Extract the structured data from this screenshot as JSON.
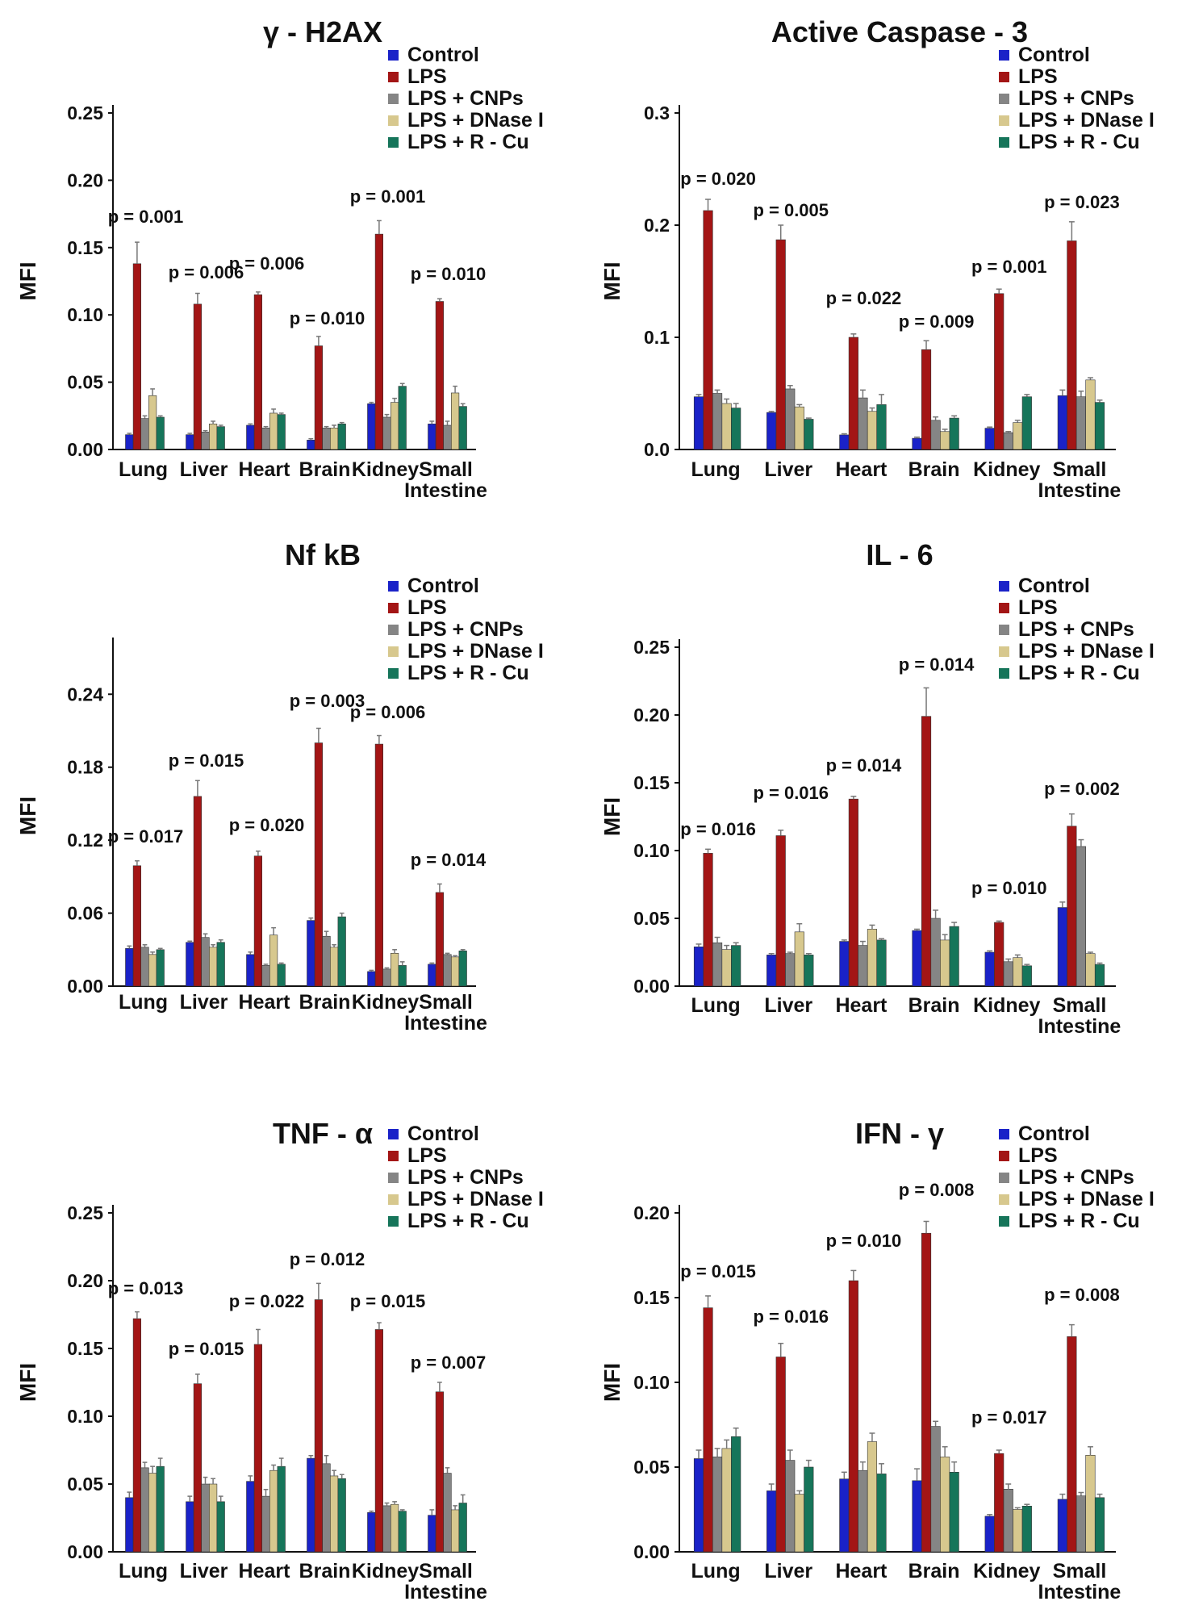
{
  "series_colors": [
    "#1a22c8",
    "#a31515",
    "#858585",
    "#d7c88e",
    "#16755a"
  ],
  "chart_data": [
    {
      "type": "bar",
      "title": "γ - H2AX",
      "ylabel": "MFI",
      "ylim": [
        0,
        0.25
      ],
      "yticks": [
        "0.00",
        "0.05",
        "0.10",
        "0.15",
        "0.20",
        "0.25"
      ],
      "categories": [
        "Lung",
        "Liver",
        "Heart",
        "Brain",
        "Kidney",
        "Small|Intestine"
      ],
      "legend": [
        "Control",
        "LPS",
        "LPS + CNPs",
        "LPS + DNase I",
        "LPS + R - Cu"
      ],
      "series": [
        {
          "name": "Control",
          "values": [
            0.011,
            0.011,
            0.018,
            0.007,
            0.034,
            0.019
          ],
          "errors": [
            0.001,
            0.001,
            0.001,
            0.001,
            0.001,
            0.002
          ]
        },
        {
          "name": "LPS",
          "values": [
            0.138,
            0.108,
            0.115,
            0.077,
            0.16,
            0.11
          ],
          "errors": [
            0.016,
            0.008,
            0.002,
            0.007,
            0.01,
            0.002
          ]
        },
        {
          "name": "LPS + CNPs",
          "values": [
            0.023,
            0.013,
            0.016,
            0.016,
            0.024,
            0.018
          ],
          "errors": [
            0.002,
            0.001,
            0.001,
            0.001,
            0.002,
            0.003
          ]
        },
        {
          "name": "LPS + DNase I",
          "values": [
            0.04,
            0.019,
            0.027,
            0.016,
            0.035,
            0.042
          ],
          "errors": [
            0.005,
            0.002,
            0.003,
            0.002,
            0.003,
            0.005
          ]
        },
        {
          "name": "LPS + R - Cu",
          "values": [
            0.024,
            0.017,
            0.026,
            0.019,
            0.047,
            0.032
          ],
          "errors": [
            0.001,
            0.001,
            0.001,
            0.001,
            0.002,
            0.002
          ]
        }
      ],
      "pvalues": [
        "p = 0.001",
        "p = 0.006",
        "p = 0.006",
        "p = 0.010",
        "p = 0.001",
        "p = 0.010"
      ]
    },
    {
      "type": "bar",
      "title": "Active Caspase - 3",
      "ylabel": "MFI",
      "ylim": [
        0,
        0.3
      ],
      "yticks": [
        "0.0",
        "0.1",
        "0.2",
        "0.3"
      ],
      "categories": [
        "Lung",
        "Liver",
        "Heart",
        "Brain",
        "Kidney",
        "Small|Intestine"
      ],
      "legend": [
        "Control",
        "LPS",
        "LPS + CNPs",
        "LPS + DNase I",
        "LPS + R - Cu"
      ],
      "series": [
        {
          "name": "Control",
          "values": [
            0.047,
            0.033,
            0.013,
            0.01,
            0.019,
            0.048
          ],
          "errors": [
            0.002,
            0.001,
            0.001,
            0.001,
            0.001,
            0.005
          ]
        },
        {
          "name": "LPS",
          "values": [
            0.213,
            0.187,
            0.1,
            0.089,
            0.139,
            0.186
          ],
          "errors": [
            0.01,
            0.013,
            0.003,
            0.008,
            0.004,
            0.017
          ]
        },
        {
          "name": "LPS + CNPs",
          "values": [
            0.05,
            0.054,
            0.046,
            0.026,
            0.015,
            0.047
          ],
          "errors": [
            0.003,
            0.003,
            0.007,
            0.003,
            0.001,
            0.005
          ]
        },
        {
          "name": "LPS + DNase I",
          "values": [
            0.041,
            0.038,
            0.034,
            0.016,
            0.024,
            0.062
          ],
          "errors": [
            0.004,
            0.002,
            0.003,
            0.002,
            0.002,
            0.002
          ]
        },
        {
          "name": "LPS + R - Cu",
          "values": [
            0.037,
            0.027,
            0.04,
            0.028,
            0.047,
            0.042
          ],
          "errors": [
            0.004,
            0.001,
            0.009,
            0.002,
            0.002,
            0.002
          ]
        }
      ],
      "pvalues": [
        "p = 0.020",
        "p = 0.005",
        "p = 0.022",
        "p = 0.009",
        "p = 0.001",
        "p = 0.023"
      ]
    },
    {
      "type": "bar",
      "title": "Nf kB",
      "ylabel": "MFI",
      "ylim": [
        0,
        0.28
      ],
      "yticks": [
        "0.00",
        "0.06",
        "0.12",
        "0.18",
        "0.24"
      ],
      "tickvalues": [
        0,
        0.06,
        0.12,
        0.18,
        0.24
      ],
      "categories": [
        "Lung",
        "Liver",
        "Heart",
        "Brain",
        "Kidney",
        "Small|Intestine"
      ],
      "legend": [
        "Control",
        "LPS",
        "LPS + CNPs",
        "LPS + DNase I",
        "LPS + R - Cu"
      ],
      "series": [
        {
          "name": "Control",
          "values": [
            0.031,
            0.036,
            0.026,
            0.054,
            0.012,
            0.018
          ],
          "errors": [
            0.002,
            0.001,
            0.002,
            0.002,
            0.001,
            0.001
          ]
        },
        {
          "name": "LPS",
          "values": [
            0.099,
            0.156,
            0.107,
            0.2,
            0.199,
            0.077
          ],
          "errors": [
            0.004,
            0.013,
            0.004,
            0.012,
            0.007,
            0.007
          ]
        },
        {
          "name": "LPS + CNPs",
          "values": [
            0.032,
            0.04,
            0.017,
            0.041,
            0.014,
            0.026
          ],
          "errors": [
            0.002,
            0.003,
            0.001,
            0.004,
            0.001,
            0.001
          ]
        },
        {
          "name": "LPS + DNase I",
          "values": [
            0.026,
            0.032,
            0.042,
            0.032,
            0.027,
            0.024
          ],
          "errors": [
            0.002,
            0.002,
            0.006,
            0.002,
            0.003,
            0.001
          ]
        },
        {
          "name": "LPS + R - Cu",
          "values": [
            0.03,
            0.036,
            0.018,
            0.057,
            0.017,
            0.029
          ],
          "errors": [
            0.001,
            0.002,
            0.001,
            0.003,
            0.003,
            0.001
          ]
        }
      ],
      "pvalues": [
        "p = 0.017",
        "p  = 0.015",
        "p = 0.020",
        "p = 0.003",
        "p = 0.006",
        "p = 0.014"
      ]
    },
    {
      "type": "bar",
      "title": "IL - 6",
      "ylabel": "MFI",
      "ylim": [
        0,
        0.25
      ],
      "yticks": [
        "0.00",
        "0.05",
        "0.10",
        "0.15",
        "0.20",
        "0.25"
      ],
      "categories": [
        "Lung",
        "Liver",
        "Heart",
        "Brain",
        "Kidney",
        "Small|Intestine"
      ],
      "legend": [
        "Control",
        "LPS",
        "LPS + CNPs",
        "LPS + DNase I",
        "LPS + R - Cu"
      ],
      "series": [
        {
          "name": "Control",
          "values": [
            0.029,
            0.023,
            0.033,
            0.041,
            0.025,
            0.058
          ],
          "errors": [
            0.002,
            0.001,
            0.001,
            0.001,
            0.001,
            0.004
          ]
        },
        {
          "name": "LPS",
          "values": [
            0.098,
            0.111,
            0.138,
            0.199,
            0.047,
            0.118
          ],
          "errors": [
            0.003,
            0.004,
            0.002,
            0.021,
            0.001,
            0.009
          ]
        },
        {
          "name": "LPS + CNPs",
          "values": [
            0.032,
            0.024,
            0.03,
            0.05,
            0.018,
            0.103
          ],
          "errors": [
            0.004,
            0.001,
            0.003,
            0.006,
            0.002,
            0.005
          ]
        },
        {
          "name": "LPS + DNase I",
          "values": [
            0.027,
            0.04,
            0.042,
            0.034,
            0.021,
            0.024
          ],
          "errors": [
            0.003,
            0.006,
            0.003,
            0.004,
            0.002,
            0.001
          ]
        },
        {
          "name": "LPS + R - Cu",
          "values": [
            0.03,
            0.023,
            0.034,
            0.044,
            0.015,
            0.016
          ],
          "errors": [
            0.002,
            0.001,
            0.001,
            0.003,
            0.001,
            0.001
          ]
        }
      ],
      "pvalues": [
        "p = 0.016",
        "p = 0.016",
        "p = 0.014",
        "p = 0.014",
        "p = 0.010",
        "p = 0.002"
      ]
    },
    {
      "type": "bar",
      "title": "TNF - α",
      "ylabel": "MFI",
      "ylim": [
        0,
        0.25
      ],
      "yticks": [
        "0.00",
        "0.05",
        "0.10",
        "0.15",
        "0.20",
        "0.25"
      ],
      "categories": [
        "Lung",
        "Liver",
        "Heart",
        "Brain",
        "Kidney",
        "Small|Intestine"
      ],
      "legend": [
        "Control",
        "LPS",
        "LPS + CNPs",
        "LPS + DNase I",
        "LPS + R - Cu"
      ],
      "series": [
        {
          "name": "Control",
          "values": [
            0.04,
            0.037,
            0.052,
            0.069,
            0.029,
            0.027
          ],
          "errors": [
            0.004,
            0.004,
            0.004,
            0.002,
            0.001,
            0.004
          ]
        },
        {
          "name": "LPS",
          "values": [
            0.172,
            0.124,
            0.153,
            0.186,
            0.164,
            0.118
          ],
          "errors": [
            0.005,
            0.007,
            0.011,
            0.012,
            0.005,
            0.007
          ]
        },
        {
          "name": "LPS + CNPs",
          "values": [
            0.062,
            0.05,
            0.041,
            0.065,
            0.034,
            0.058
          ],
          "errors": [
            0.004,
            0.005,
            0.005,
            0.006,
            0.002,
            0.004
          ]
        },
        {
          "name": "LPS + DNase I",
          "values": [
            0.058,
            0.05,
            0.06,
            0.056,
            0.035,
            0.031
          ],
          "errors": [
            0.005,
            0.004,
            0.004,
            0.004,
            0.002,
            0.003
          ]
        },
        {
          "name": "LPS + R - Cu",
          "values": [
            0.063,
            0.037,
            0.063,
            0.054,
            0.03,
            0.036
          ],
          "errors": [
            0.006,
            0.004,
            0.006,
            0.003,
            0.001,
            0.006
          ]
        }
      ],
      "pvalues": [
        "p = 0.013",
        "p = 0.015",
        "p = 0.022",
        "p = 0.012",
        "p = 0.015",
        "p = 0.007"
      ]
    },
    {
      "type": "bar",
      "title": "IFN - γ",
      "ylabel": "MFI",
      "ylim": [
        0,
        0.2
      ],
      "yticks": [
        "0.00",
        "0.05",
        "0.10",
        "0.15",
        "0.20"
      ],
      "categories": [
        "Lung",
        "Liver",
        "Heart",
        "Brain",
        "Kidney",
        "Small|Intestine"
      ],
      "legend": [
        "Control",
        "LPS",
        "LPS + CNPs",
        "LPS + DNase I",
        "LPS + R - Cu"
      ],
      "series": [
        {
          "name": "Control",
          "values": [
            0.055,
            0.036,
            0.043,
            0.042,
            0.021,
            0.031
          ],
          "errors": [
            0.005,
            0.004,
            0.004,
            0.007,
            0.001,
            0.003
          ]
        },
        {
          "name": "LPS",
          "values": [
            0.144,
            0.115,
            0.16,
            0.188,
            0.058,
            0.127
          ],
          "errors": [
            0.007,
            0.008,
            0.006,
            0.007,
            0.002,
            0.007
          ]
        },
        {
          "name": "LPS + CNPs",
          "values": [
            0.056,
            0.054,
            0.048,
            0.074,
            0.037,
            0.033
          ],
          "errors": [
            0.005,
            0.006,
            0.005,
            0.003,
            0.003,
            0.002
          ]
        },
        {
          "name": "LPS + DNase I",
          "values": [
            0.061,
            0.034,
            0.065,
            0.056,
            0.025,
            0.057
          ],
          "errors": [
            0.005,
            0.002,
            0.005,
            0.006,
            0.001,
            0.005
          ]
        },
        {
          "name": "LPS + R - Cu",
          "values": [
            0.068,
            0.05,
            0.046,
            0.047,
            0.027,
            0.032
          ],
          "errors": [
            0.005,
            0.004,
            0.006,
            0.006,
            0.001,
            0.002
          ]
        }
      ],
      "pvalues": [
        "p = 0.015",
        "p = 0.016",
        "p = 0.010",
        "p = 0.008",
        "p = 0.017",
        "p = 0.008"
      ]
    }
  ]
}
